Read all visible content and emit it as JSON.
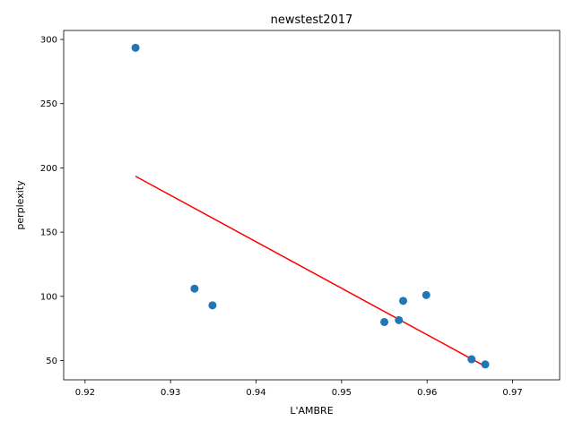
{
  "chart_data": {
    "type": "scatter",
    "title": "newstest2017",
    "xlabel": "L'AMBRE",
    "ylabel": "perplexity",
    "xlim": [
      0.9175,
      0.9755
    ],
    "ylim": [
      35,
      307
    ],
    "xticks": [
      0.92,
      0.93,
      0.94,
      0.95,
      0.96,
      0.97
    ],
    "xtick_labels": [
      "0.92",
      "0.93",
      "0.94",
      "0.95",
      "0.96",
      "0.97"
    ],
    "yticks": [
      50,
      100,
      150,
      200,
      250,
      300
    ],
    "ytick_labels": [
      "50",
      "100",
      "150",
      "200",
      "250",
      "300"
    ],
    "grid": false,
    "points": {
      "x": [
        0.9259,
        0.9328,
        0.9349,
        0.955,
        0.9567,
        0.9572,
        0.9599,
        0.9652,
        0.9668
      ],
      "y": [
        293.5,
        106,
        93,
        80,
        81.5,
        96.5,
        101,
        51,
        47
      ],
      "color": "#1f77b4"
    },
    "fit_line": {
      "x": [
        0.9259,
        0.9668
      ],
      "y": [
        193.5,
        45.5
      ],
      "color": "#ff0000"
    }
  }
}
